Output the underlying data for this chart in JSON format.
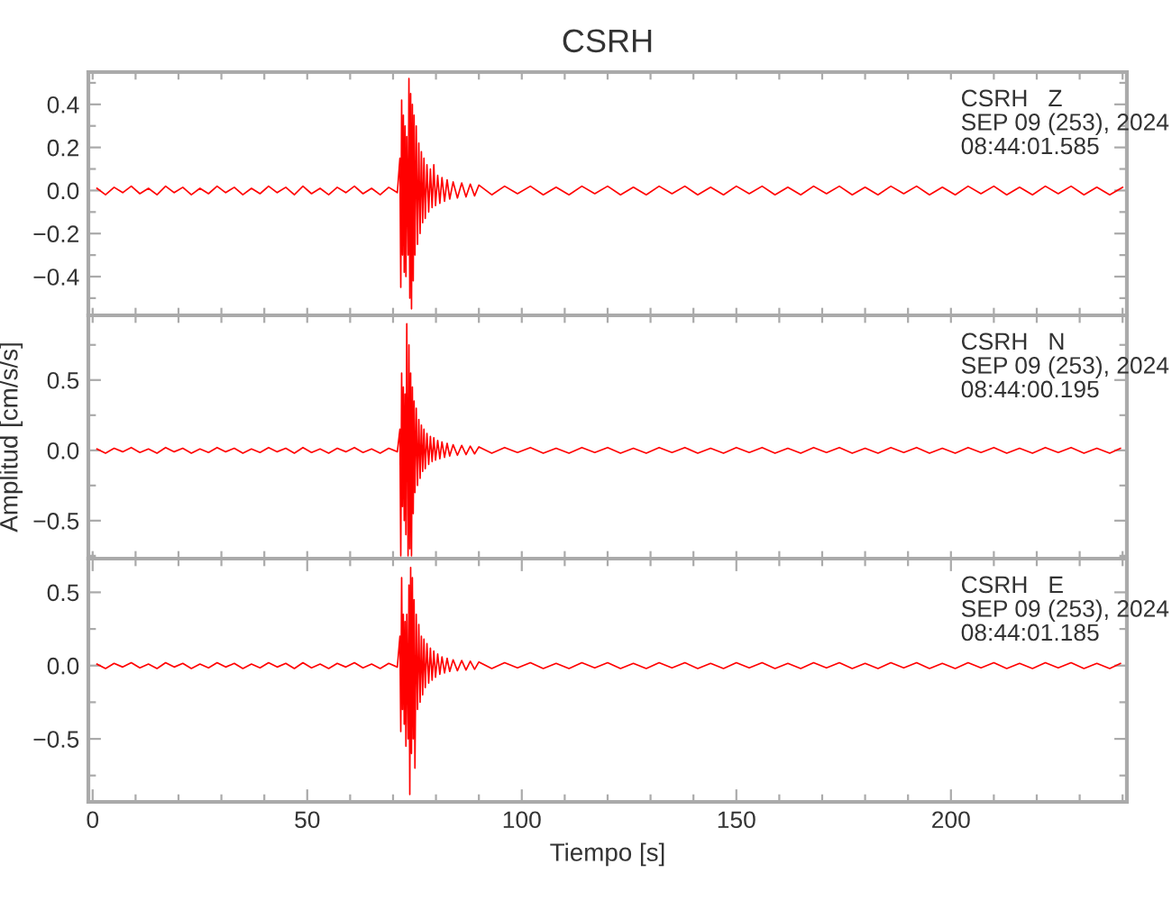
{
  "chart_data": [
    {
      "type": "line",
      "title": "CSRH",
      "annotations": [
        "CSRH   Z\nSEP 09 (253), 2024\n08:44:01.585"
      ],
      "xlim": [
        -1,
        241
      ],
      "ylim": [
        -0.58,
        0.55
      ],
      "xticks": [
        {
          "value": 0,
          "label": null
        },
        {
          "value": 10,
          "label": null
        },
        {
          "value": 20,
          "label": null
        },
        {
          "value": 30,
          "label": null
        },
        {
          "value": 40,
          "label": null
        },
        {
          "value": 50,
          "label": null
        },
        {
          "value": 60,
          "label": null
        },
        {
          "value": 70,
          "label": null
        },
        {
          "value": 80,
          "label": null
        },
        {
          "value": 90,
          "label": null
        },
        {
          "value": 100,
          "label": null
        },
        {
          "value": 110,
          "label": null
        },
        {
          "value": 120,
          "label": null
        },
        {
          "value": 130,
          "label": null
        },
        {
          "value": 140,
          "label": null
        },
        {
          "value": 150,
          "label": null
        },
        {
          "value": 160,
          "label": null
        },
        {
          "value": 170,
          "label": null
        },
        {
          "value": 180,
          "label": null
        },
        {
          "value": 190,
          "label": null
        },
        {
          "value": 200,
          "label": null
        },
        {
          "value": 210,
          "label": null
        },
        {
          "value": 220,
          "label": null
        },
        {
          "value": 230,
          "label": null
        },
        {
          "value": 240,
          "label": null
        }
      ],
      "yticks": [
        {
          "value": -0.5,
          "label": null
        },
        {
          "value": -0.4,
          "label": "−0.4"
        },
        {
          "value": -0.3,
          "label": null
        },
        {
          "value": -0.2,
          "label": "−0.2"
        },
        {
          "value": -0.1,
          "label": null
        },
        {
          "value": 0.0,
          "label": "0.0"
        },
        {
          "value": 0.1,
          "label": null
        },
        {
          "value": 0.2,
          "label": "0.2"
        },
        {
          "value": 0.3,
          "label": null
        },
        {
          "value": 0.4,
          "label": "0.4"
        },
        {
          "value": 0.5,
          "label": null
        }
      ],
      "tick_labels": "y",
      "grid": false,
      "legend": false,
      "series": [
        {
          "color": "#ff0000",
          "x": [
            1,
            3,
            5,
            7,
            9,
            11,
            13,
            15,
            17,
            19,
            21,
            23,
            25,
            27,
            29,
            31,
            33,
            35,
            37,
            39,
            41,
            43,
            45,
            47,
            49,
            51,
            53,
            55,
            57,
            59,
            61,
            63,
            65,
            67,
            69,
            71,
            71.6,
            71.8,
            72.0,
            72.2,
            72.4,
            72.6,
            72.8,
            73.0,
            73.2,
            73.5,
            73.7,
            73.9,
            74.1,
            74.3,
            74.5,
            74.7,
            74.9,
            75.1,
            75.4,
            75.7,
            76.0,
            76.3,
            76.6,
            76.9,
            77.2,
            77.5,
            77.9,
            78.3,
            78.7,
            79.1,
            79.5,
            79.9,
            80.4,
            80.9,
            81.4,
            82,
            82.6,
            83.2,
            84,
            85,
            86,
            87,
            88,
            89,
            90,
            93,
            96,
            99,
            102,
            105,
            108,
            111,
            114,
            117,
            120,
            123,
            126,
            129,
            132,
            135,
            138,
            141,
            144,
            147,
            150,
            153,
            156,
            159,
            162,
            165,
            168,
            171,
            174,
            177,
            180,
            183,
            186,
            189,
            192,
            195,
            198,
            201,
            204,
            207,
            210,
            213,
            216,
            219,
            222,
            225,
            228,
            231,
            234,
            237,
            240
          ],
          "values": [
            0.01,
            -0.02,
            0.015,
            -0.01,
            0.02,
            -0.015,
            0.01,
            -0.02,
            0.02,
            -0.01,
            0.015,
            -0.02,
            0.01,
            -0.015,
            0.02,
            -0.01,
            0.015,
            -0.02,
            0.01,
            -0.015,
            0.02,
            -0.01,
            0.015,
            -0.02,
            0.02,
            -0.015,
            0.01,
            -0.02,
            0.015,
            -0.01,
            0.02,
            -0.015,
            0.01,
            -0.02,
            0.015,
            -0.01,
            0.15,
            -0.45,
            0.42,
            -0.3,
            0.35,
            -0.38,
            0.3,
            -0.4,
            0.25,
            -0.3,
            0.52,
            -0.5,
            0.45,
            -0.55,
            0.4,
            -0.42,
            0.35,
            -0.3,
            0.3,
            -0.25,
            0.22,
            -0.2,
            0.18,
            -0.15,
            0.15,
            -0.13,
            0.12,
            -0.1,
            0.1,
            -0.08,
            0.12,
            -0.07,
            0.07,
            -0.06,
            0.06,
            -0.05,
            0.05,
            -0.04,
            0.04,
            -0.035,
            0.035,
            -0.03,
            0.03,
            -0.025,
            0.025,
            -0.02,
            0.02,
            -0.015,
            0.02,
            -0.02,
            0.015,
            -0.02,
            0.02,
            -0.015,
            0.02,
            -0.02,
            0.015,
            -0.02,
            0.02,
            -0.015,
            0.02,
            -0.02,
            0.015,
            -0.02,
            0.02,
            -0.015,
            0.02,
            -0.02,
            0.015,
            -0.02,
            0.02,
            -0.015,
            0.02,
            -0.02,
            0.015,
            -0.02,
            0.02,
            -0.015,
            0.02,
            -0.02,
            0.015,
            -0.02,
            0.02,
            -0.015,
            0.02,
            -0.02,
            0.015,
            -0.02,
            0.02,
            -0.015,
            0.02,
            -0.02,
            0.015,
            -0.02,
            0.015
          ]
        }
      ]
    },
    {
      "type": "line",
      "ylabel": "Amplitud [cm/s/s]",
      "annotations": [
        "CSRH   N\nSEP 09 (253), 2024\n08:44:00.195"
      ],
      "xlim": [
        -1,
        241
      ],
      "ylim": [
        -0.77,
        0.96
      ],
      "xticks": [
        {
          "value": 0,
          "label": null
        },
        {
          "value": 10,
          "label": null
        },
        {
          "value": 20,
          "label": null
        },
        {
          "value": 30,
          "label": null
        },
        {
          "value": 40,
          "label": null
        },
        {
          "value": 50,
          "label": null
        },
        {
          "value": 60,
          "label": null
        },
        {
          "value": 70,
          "label": null
        },
        {
          "value": 80,
          "label": null
        },
        {
          "value": 90,
          "label": null
        },
        {
          "value": 100,
          "label": null
        },
        {
          "value": 110,
          "label": null
        },
        {
          "value": 120,
          "label": null
        },
        {
          "value": 130,
          "label": null
        },
        {
          "value": 140,
          "label": null
        },
        {
          "value": 150,
          "label": null
        },
        {
          "value": 160,
          "label": null
        },
        {
          "value": 170,
          "label": null
        },
        {
          "value": 180,
          "label": null
        },
        {
          "value": 190,
          "label": null
        },
        {
          "value": 200,
          "label": null
        },
        {
          "value": 210,
          "label": null
        },
        {
          "value": 220,
          "label": null
        },
        {
          "value": 230,
          "label": null
        },
        {
          "value": 240,
          "label": null
        }
      ],
      "yticks": [
        {
          "value": -0.75,
          "label": null
        },
        {
          "value": -0.5,
          "label": "−0.5"
        },
        {
          "value": -0.25,
          "label": null
        },
        {
          "value": 0.0,
          "label": "0.0"
        },
        {
          "value": 0.25,
          "label": null
        },
        {
          "value": 0.5,
          "label": "0.5"
        },
        {
          "value": 0.75,
          "label": null
        }
      ],
      "tick_labels": "y",
      "grid": false,
      "legend": false,
      "series": [
        {
          "color": "#ff0000",
          "x": [
            1,
            3,
            5,
            7,
            9,
            11,
            13,
            15,
            17,
            19,
            21,
            23,
            25,
            27,
            29,
            31,
            33,
            35,
            37,
            39,
            41,
            43,
            45,
            47,
            49,
            51,
            53,
            55,
            57,
            59,
            61,
            63,
            65,
            67,
            69,
            71,
            71.6,
            71.8,
            72.0,
            72.2,
            72.4,
            72.6,
            72.8,
            73.0,
            73.2,
            73.5,
            73.7,
            73.9,
            74.1,
            74.3,
            74.5,
            74.7,
            74.9,
            75.1,
            75.4,
            75.7,
            76.0,
            76.3,
            76.6,
            76.9,
            77.2,
            77.5,
            77.9,
            78.3,
            78.7,
            79.1,
            79.5,
            79.9,
            80.4,
            80.9,
            81.4,
            82,
            82.6,
            83.2,
            84,
            85,
            86,
            87,
            88,
            89,
            90,
            93,
            96,
            99,
            102,
            105,
            108,
            111,
            114,
            117,
            120,
            123,
            126,
            129,
            132,
            135,
            138,
            141,
            144,
            147,
            150,
            153,
            156,
            159,
            162,
            165,
            168,
            171,
            174,
            177,
            180,
            183,
            186,
            189,
            192,
            195,
            198,
            201,
            204,
            207,
            210,
            213,
            216,
            219,
            222,
            225,
            228,
            231,
            234,
            237,
            239.5
          ],
          "values": [
            0.01,
            -0.02,
            0.015,
            -0.01,
            0.02,
            -0.015,
            0.01,
            -0.02,
            0.02,
            -0.01,
            0.015,
            -0.02,
            0.01,
            -0.015,
            0.02,
            -0.01,
            0.015,
            -0.02,
            0.01,
            -0.015,
            0.02,
            -0.01,
            0.015,
            -0.02,
            0.02,
            -0.015,
            0.01,
            -0.02,
            0.015,
            -0.01,
            0.02,
            -0.015,
            0.01,
            -0.02,
            0.015,
            -0.01,
            0.15,
            -0.75,
            0.55,
            -0.4,
            0.45,
            -0.5,
            0.4,
            -0.6,
            0.9,
            -0.75,
            0.75,
            -0.7,
            0.55,
            -0.75,
            0.45,
            -0.45,
            0.35,
            -0.3,
            0.3,
            -0.25,
            0.22,
            -0.2,
            0.18,
            -0.15,
            0.15,
            -0.13,
            0.12,
            -0.1,
            0.1,
            -0.08,
            0.09,
            -0.07,
            0.07,
            -0.06,
            0.06,
            -0.05,
            0.05,
            -0.04,
            0.04,
            -0.035,
            0.035,
            -0.03,
            0.03,
            -0.025,
            0.025,
            -0.02,
            0.02,
            -0.015,
            0.02,
            -0.02,
            0.015,
            -0.02,
            0.02,
            -0.015,
            0.02,
            -0.02,
            0.015,
            -0.02,
            0.02,
            -0.015,
            0.02,
            -0.02,
            0.015,
            -0.02,
            0.02,
            -0.015,
            0.02,
            -0.02,
            0.015,
            -0.02,
            0.02,
            -0.015,
            0.02,
            -0.02,
            0.015,
            -0.02,
            0.02,
            -0.015,
            0.02,
            -0.02,
            0.015,
            -0.02,
            0.02,
            -0.015,
            0.02,
            -0.02,
            0.015,
            -0.02,
            0.02,
            -0.015,
            0.02,
            -0.02,
            0.015,
            -0.02,
            0.015
          ]
        }
      ]
    },
    {
      "type": "line",
      "xlabel": "Tiempo [s]",
      "annotations": [
        "CSRH   E\nSEP 09 (253), 2024\n08:44:01.185"
      ],
      "xlim": [
        -1,
        241
      ],
      "ylim": [
        -0.93,
        0.73
      ],
      "xticks": [
        {
          "value": 0,
          "label": "0"
        },
        {
          "value": 10,
          "label": null
        },
        {
          "value": 20,
          "label": null
        },
        {
          "value": 30,
          "label": null
        },
        {
          "value": 40,
          "label": null
        },
        {
          "value": 50,
          "label": "50"
        },
        {
          "value": 60,
          "label": null
        },
        {
          "value": 70,
          "label": null
        },
        {
          "value": 80,
          "label": null
        },
        {
          "value": 90,
          "label": null
        },
        {
          "value": 100,
          "label": "100"
        },
        {
          "value": 110,
          "label": null
        },
        {
          "value": 120,
          "label": null
        },
        {
          "value": 130,
          "label": null
        },
        {
          "value": 140,
          "label": null
        },
        {
          "value": 150,
          "label": "150"
        },
        {
          "value": 160,
          "label": null
        },
        {
          "value": 170,
          "label": null
        },
        {
          "value": 180,
          "label": null
        },
        {
          "value": 190,
          "label": null
        },
        {
          "value": 200,
          "label": "200"
        },
        {
          "value": 210,
          "label": null
        },
        {
          "value": 220,
          "label": null
        },
        {
          "value": 230,
          "label": null
        },
        {
          "value": 240,
          "label": null
        }
      ],
      "yticks": [
        {
          "value": -0.75,
          "label": null
        },
        {
          "value": -0.5,
          "label": "−0.5"
        },
        {
          "value": -0.25,
          "label": null
        },
        {
          "value": 0.0,
          "label": "0.0"
        },
        {
          "value": 0.25,
          "label": null
        },
        {
          "value": 0.5,
          "label": "0.5"
        }
      ],
      "grid": false,
      "legend": false,
      "series": [
        {
          "color": "#ff0000",
          "x": [
            1,
            3,
            5,
            7,
            9,
            11,
            13,
            15,
            17,
            19,
            21,
            23,
            25,
            27,
            29,
            31,
            33,
            35,
            37,
            39,
            41,
            43,
            45,
            47,
            49,
            51,
            53,
            55,
            57,
            59,
            61,
            63,
            65,
            67,
            69,
            71,
            71.6,
            71.8,
            72.0,
            72.2,
            72.4,
            72.6,
            72.8,
            73.0,
            73.2,
            73.5,
            73.7,
            73.9,
            74.1,
            74.3,
            74.5,
            74.7,
            74.9,
            75.1,
            75.4,
            75.7,
            76.0,
            76.3,
            76.6,
            76.9,
            77.2,
            77.5,
            77.9,
            78.3,
            78.7,
            79.1,
            79.5,
            79.9,
            80.4,
            80.9,
            81.4,
            82,
            82.6,
            83.2,
            84,
            85,
            86,
            87,
            88,
            89,
            90,
            93,
            96,
            99,
            102,
            105,
            108,
            111,
            114,
            117,
            120,
            123,
            126,
            129,
            132,
            135,
            138,
            141,
            144,
            147,
            150,
            153,
            156,
            159,
            162,
            165,
            168,
            171,
            174,
            177,
            180,
            183,
            186,
            189,
            192,
            195,
            198,
            201,
            204,
            207,
            210,
            213,
            216,
            219,
            222,
            225,
            228,
            231,
            234,
            237,
            239.5
          ],
          "values": [
            0.01,
            -0.02,
            0.015,
            -0.01,
            0.02,
            -0.015,
            0.01,
            -0.02,
            0.02,
            -0.01,
            0.015,
            -0.02,
            0.01,
            -0.015,
            0.02,
            -0.01,
            0.015,
            -0.02,
            0.01,
            -0.015,
            0.02,
            -0.01,
            0.015,
            -0.02,
            0.02,
            -0.015,
            0.01,
            -0.02,
            0.015,
            -0.01,
            0.02,
            -0.015,
            0.01,
            -0.02,
            0.015,
            -0.01,
            0.2,
            -0.45,
            0.6,
            -0.3,
            0.35,
            -0.4,
            0.3,
            -0.55,
            0.35,
            -0.5,
            0.55,
            -0.88,
            0.67,
            -0.6,
            0.6,
            -0.5,
            0.45,
            -0.7,
            0.35,
            -0.3,
            0.28,
            -0.25,
            0.2,
            -0.2,
            0.18,
            -0.15,
            0.15,
            -0.12,
            0.12,
            -0.1,
            0.1,
            -0.08,
            0.08,
            -0.06,
            0.06,
            -0.05,
            0.05,
            -0.04,
            0.04,
            -0.035,
            0.035,
            -0.03,
            0.03,
            -0.025,
            0.025,
            -0.02,
            0.02,
            -0.015,
            0.02,
            -0.02,
            0.015,
            -0.02,
            0.02,
            -0.015,
            0.02,
            -0.02,
            0.015,
            -0.02,
            0.02,
            -0.015,
            0.02,
            -0.02,
            0.015,
            -0.02,
            0.02,
            -0.015,
            0.02,
            -0.02,
            0.015,
            -0.02,
            0.02,
            -0.015,
            0.02,
            -0.02,
            0.015,
            -0.02,
            0.02,
            -0.015,
            0.02,
            -0.02,
            0.015,
            -0.02,
            0.02,
            -0.015,
            0.02,
            -0.02,
            0.015,
            -0.02,
            0.02,
            -0.015,
            0.02,
            -0.02,
            0.015,
            -0.02,
            0.015
          ]
        }
      ]
    }
  ]
}
